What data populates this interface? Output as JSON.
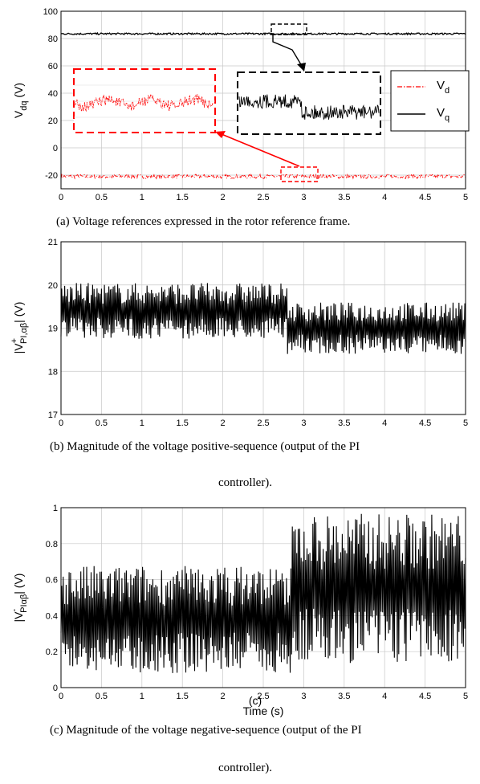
{
  "chart_data": [
    {
      "type": "line",
      "caption": "(a) Voltage references expressed in the rotor reference frame.",
      "ylabel_main": "V",
      "ylabel_sub": "dq",
      "ylabel_unit": " (V)",
      "xlim": [
        0,
        5
      ],
      "ylim": [
        -30,
        100
      ],
      "xticks": [
        "0",
        "0.5",
        "1",
        "1.5",
        "2",
        "2.5",
        "3",
        "3.5",
        "4",
        "4.5",
        "5"
      ],
      "yticks": [
        "-20",
        "0",
        "20",
        "40",
        "60",
        "80",
        "100"
      ],
      "grid": true,
      "legend": {
        "placement": "right",
        "entries": [
          {
            "main": "V",
            "sub": "d"
          },
          {
            "main": "V",
            "sub": "q"
          }
        ]
      },
      "series": [
        {
          "name": "Vd",
          "color": "#ff0000",
          "style": "dash-dot",
          "values_mean": -21,
          "ripple": 1.5
        },
        {
          "name": "Vq",
          "color": "#000000",
          "style": "solid",
          "values_mean": 83.5,
          "ripple": 0.6
        }
      ],
      "zoom_insets": [
        {
          "series": "Vd",
          "x_range": [
            2.75,
            3.2
          ],
          "color": "#ff0000"
        },
        {
          "series": "Vq",
          "x_range": [
            2.6,
            3.05
          ],
          "color": "#000000"
        }
      ]
    },
    {
      "type": "line",
      "caption_line1": "(b) Magnitude of the voltage positive-sequence (output of the PI",
      "caption_line2": "controller).",
      "ylabel_text": "|V",
      "ylabel_sup": "+",
      "ylabel_sub": "PI,αβ",
      "ylabel_unit": "| (V)",
      "xlim": [
        0,
        5
      ],
      "ylim": [
        17,
        21
      ],
      "xticks": [
        "0",
        "0.5",
        "1",
        "1.5",
        "2",
        "2.5",
        "3",
        "3.5",
        "4",
        "4.5",
        "5"
      ],
      "yticks": [
        "17",
        "18",
        "19",
        "20",
        "21"
      ],
      "grid": true,
      "series": [
        {
          "color": "#000000",
          "segments": [
            {
              "x": [
                0,
                2.8
              ],
              "mean": 19.4,
              "amplitude": 0.65
            },
            {
              "x": [
                2.8,
                5
              ],
              "mean": 19.0,
              "amplitude": 0.6
            }
          ]
        }
      ]
    },
    {
      "type": "line",
      "caption_line1": "(c) Magnitude of the voltage negative-sequence (output of the PI",
      "caption_line2": "controller).",
      "ylabel_text": "|V",
      "ylabel_sup": "-",
      "ylabel_sub": "PIαβ",
      "ylabel_unit": "| (V)",
      "xlabel": "Time (s)",
      "overlay_label": "(c)",
      "xlim": [
        0,
        5
      ],
      "ylim": [
        0,
        1
      ],
      "xticks": [
        "0",
        "0.5",
        "1",
        "1.5",
        "2",
        "2.5",
        "3",
        "3.5",
        "4",
        "4.5",
        "5"
      ],
      "yticks": [
        "0",
        "0.2",
        "0.4",
        "0.6",
        "0.8",
        "1"
      ],
      "grid": true,
      "series": [
        {
          "color": "#000000",
          "segments": [
            {
              "x": [
                0,
                2.85
              ],
              "mean": 0.38,
              "amplitude": 0.3
            },
            {
              "x": [
                2.85,
                5
              ],
              "mean": 0.55,
              "amplitude": 0.42
            }
          ]
        }
      ]
    }
  ]
}
